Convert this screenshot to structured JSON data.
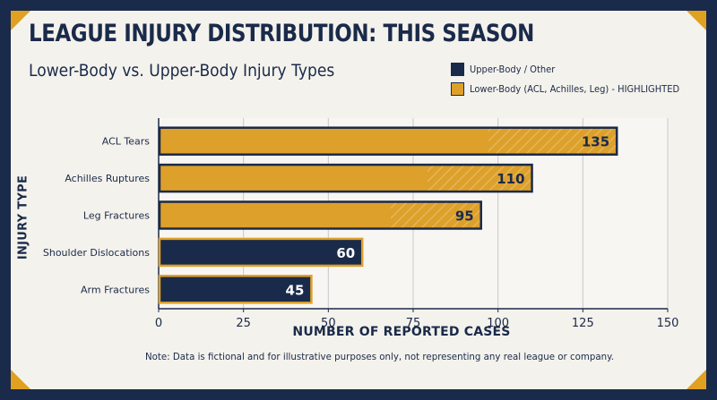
{
  "title": "LEAGUE INJURY DISTRIBUTION: THIS SEASON",
  "subtitle": "Lower-Body vs. Upper-Body Injury Types",
  "legend": [
    {
      "label": "Upper-Body / Other",
      "color": "#1a2a4a"
    },
    {
      "label": "Lower-Body (ACL, Achilles, Leg) - HIGHLIGHTED",
      "color": "#dda02a"
    }
  ],
  "note": "Note: Data is fictional and for illustrative purposes only, not representing any real league or company.",
  "colors": {
    "navy": "#1a2a4a",
    "gold": "#dda02a",
    "background": "#f4f2ec"
  },
  "chart_data": {
    "type": "bar",
    "orientation": "horizontal",
    "title": "LEAGUE INJURY DISTRIBUTION: THIS SEASON",
    "subtitle": "Lower-Body vs. Upper-Body Injury Types",
    "xlabel": "NUMBER OF REPORTED CASES",
    "ylabel": "INJURY TYPE",
    "xlim": [
      0,
      150
    ],
    "xticks": [
      0,
      25,
      50,
      75,
      100,
      125,
      150
    ],
    "grid": true,
    "legend_position": "top-right",
    "categories": [
      "ACL Tears",
      "Achilles Ruptures",
      "Leg Fractures",
      "Shoulder Dislocations",
      "Arm Fractures"
    ],
    "values": [
      135,
      110,
      95,
      60,
      45
    ],
    "groups": [
      "Lower-Body",
      "Lower-Body",
      "Lower-Body",
      "Upper-Body / Other",
      "Upper-Body / Other"
    ],
    "highlighted": [
      true,
      true,
      true,
      false,
      false
    ]
  }
}
